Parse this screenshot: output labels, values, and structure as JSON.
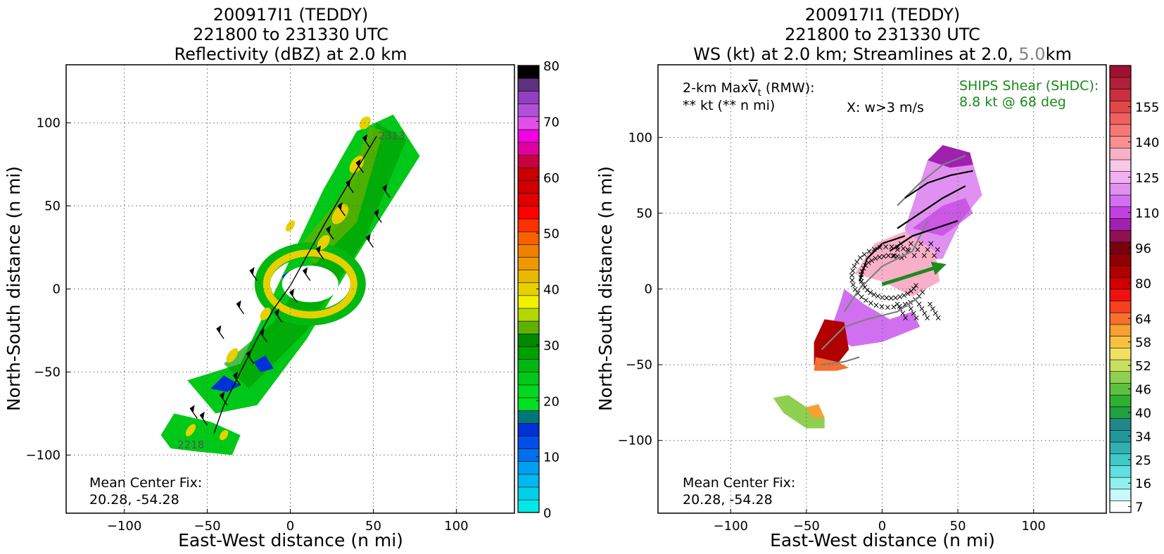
{
  "chart_data": [
    {
      "type": "heatmap",
      "title": [
        "200917I1 (TEDDY)",
        "221800 to 231330 UTC",
        "Reflectivity (dBZ) at 2.0 km"
      ],
      "xlabel": "East-West distance (n mi)",
      "ylabel": "North-South distance (n mi)",
      "xlim": [
        -135,
        135
      ],
      "ylim": [
        -135,
        135
      ],
      "xticks": [
        -100,
        -50,
        0,
        50,
        100
      ],
      "yticks": [
        -100,
        -50,
        0,
        50,
        100
      ],
      "grid": true,
      "colorbar": {
        "range": [
          0,
          80
        ],
        "ticks": [
          0,
          10,
          20,
          30,
          40,
          50,
          60,
          70,
          80
        ],
        "colors": [
          "#00e8e8",
          "#00d0e8",
          "#00b8f0",
          "#00a0f0",
          "#0070f0",
          "#0050e8",
          "#0030d8",
          "#007878",
          "#00e020",
          "#00d820",
          "#00c818",
          "#00b810",
          "#00a000",
          "#008800",
          "#60b000",
          "#b0d800",
          "#f0f000",
          "#e8d000",
          "#e8b800",
          "#f09800",
          "#f08000",
          "#f86000",
          "#ff3000",
          "#ff0000",
          "#e00000",
          "#d00000",
          "#c80000",
          "#c80040",
          "#e000a0",
          "#f000e0",
          "#e050e8",
          "#b050d8",
          "#9040c0",
          "#603080",
          "#000000"
        ]
      },
      "annotations": {
        "center_fix_label": "Mean Center Fix:",
        "center_fix_value": "20.28, -54.28",
        "track_start_label": "2218",
        "track_end_label": "2313"
      },
      "flight_track": [
        [
          -46,
          -87
        ],
        [
          -40,
          -70
        ],
        [
          -30,
          -50
        ],
        [
          -20,
          -30
        ],
        [
          -10,
          -12
        ],
        [
          0,
          2
        ],
        [
          10,
          20
        ],
        [
          20,
          38
        ],
        [
          30,
          55
        ],
        [
          40,
          72
        ],
        [
          52,
          92
        ]
      ]
    },
    {
      "type": "heatmap",
      "title": [
        "200917I1 (TEDDY)",
        "221800 to 231330 UTC",
        "WS (kt) at 2.0 km; Streamlines at 2.0, ",
        "5.0",
        "km"
      ],
      "xlabel": "East-West distance (n mi)",
      "ylabel": "North-South distance (n mi)",
      "xlim": [
        -148,
        148
      ],
      "ylim": [
        -148,
        148
      ],
      "xticks": [
        -100,
        -50,
        0,
        50,
        100
      ],
      "yticks": [
        -100,
        -50,
        0,
        50,
        100
      ],
      "grid": true,
      "colorbar": {
        "range": [
          7,
          160
        ],
        "ticks": [
          7,
          16,
          25,
          34,
          40,
          46,
          52,
          58,
          64,
          80,
          96,
          110,
          125,
          140,
          155
        ],
        "colors": [
          "#ffffff",
          "#c8f8f8",
          "#90f0f0",
          "#60e0e0",
          "#40c8c8",
          "#30b0b0",
          "#209898",
          "#208888",
          "#20a040",
          "#30b030",
          "#60c040",
          "#90d050",
          "#c8e060",
          "#f0e060",
          "#f8c040",
          "#f8a030",
          "#f87030",
          "#f84020",
          "#f01010",
          "#d00000",
          "#b00000",
          "#900000",
          "#780010",
          "#901050",
          "#a020b0",
          "#c040e0",
          "#d070f0",
          "#e090f0",
          "#f0b0f0",
          "#f8c8e8",
          "#f8b0c8",
          "#f89090",
          "#f87878",
          "#f06060",
          "#e04848",
          "#c83040",
          "#b02038",
          "#a01030"
        ]
      },
      "annotations": {
        "maxvt_label": "2-km Max",
        "maxvt_symbol": "V",
        "maxvt_sub": "t",
        "maxvt_suffix": " (RMW):",
        "maxvt_value": "** kt (** n mi)",
        "w_legend": "X: w>3 m/s",
        "ships_label": "SHIPS Shear (SHDC):",
        "ships_value": "8.8 kt @ 68 deg",
        "center_fix_label": "Mean Center Fix:",
        "center_fix_value": "20.28, -54.28"
      },
      "shear_vector": {
        "from": [
          0,
          3
        ],
        "to": [
          38,
          15
        ]
      }
    }
  ]
}
